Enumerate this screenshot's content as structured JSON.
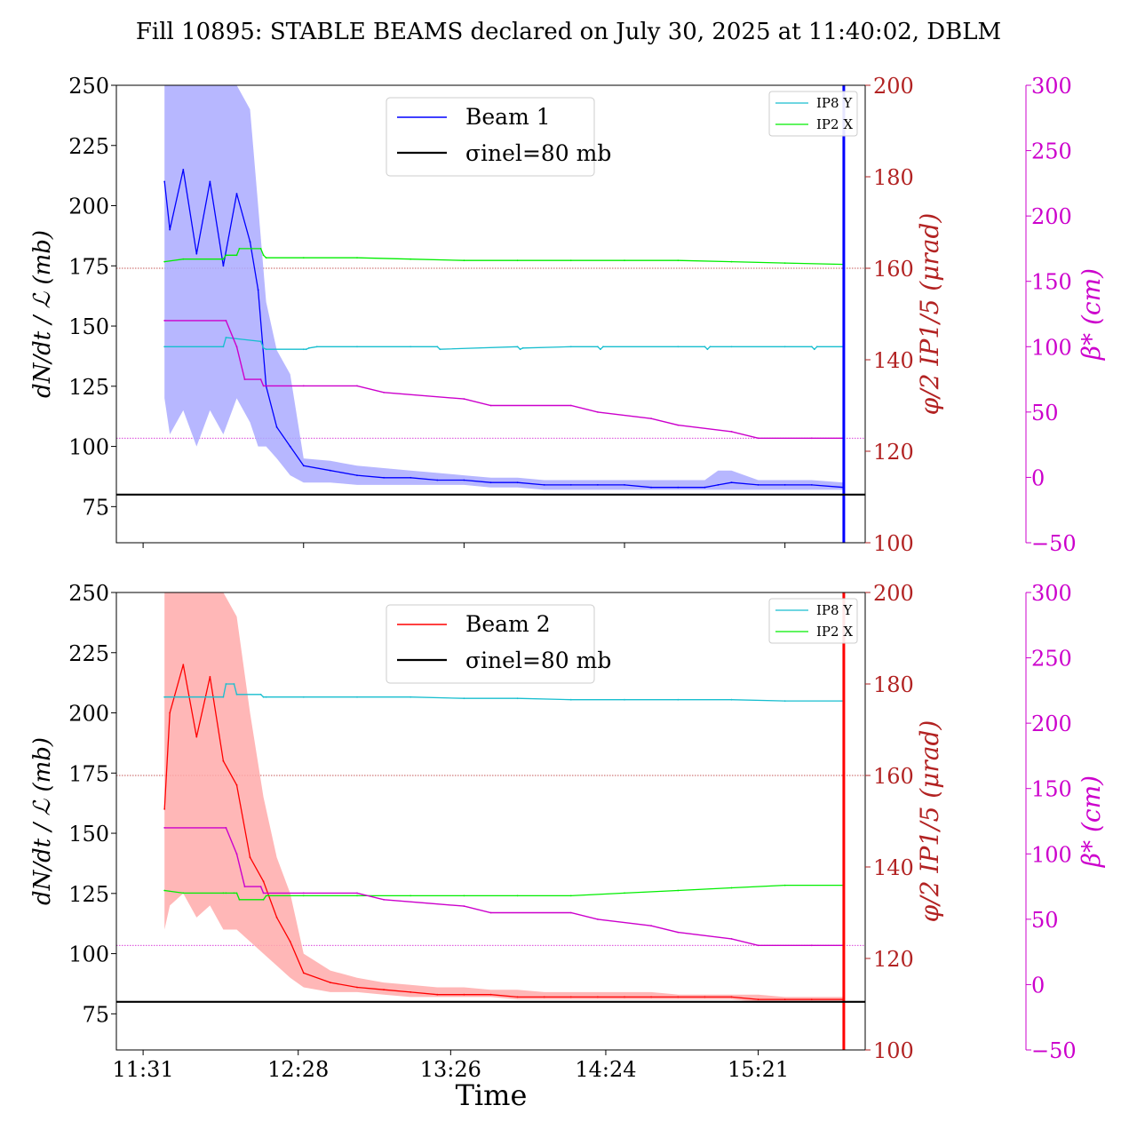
{
  "title": "Fill 10895: STABLE BEAMS declared on July 30, 2025 at 11:40:02, DBLM",
  "colors": {
    "beam1": "#0000ff",
    "beam1_band": "#aaaaff",
    "beam2": "#ff0000",
    "beam2_band": "#ffaaaa",
    "ip8y": "#17becf",
    "ip2x": "#00ee00",
    "beta": "#cc00cc",
    "phi_axis": "#b22222",
    "sigma": "#000000"
  },
  "chart_data": [
    {
      "type": "line",
      "xlabel": "",
      "ylabel": "dN/dt / ℒ (mb)",
      "y2label": "φ/2 IP1/5 (μrad)",
      "y3label": "β* (cm)",
      "ylim": [
        60,
        250
      ],
      "y2lim": [
        100,
        200
      ],
      "y3lim": [
        -50,
        300
      ],
      "xlim_min": [
        -10,
        270
      ],
      "xticks_min": [
        0,
        60,
        120,
        180,
        240
      ],
      "yticks": [
        75,
        100,
        125,
        150,
        175,
        200,
        225,
        250
      ],
      "y2ticks": [
        100,
        120,
        140,
        160,
        180,
        200
      ],
      "y3ticks": [
        -50,
        0,
        50,
        100,
        150,
        200,
        250,
        300
      ],
      "legend": {
        "position": "upper-center",
        "entries": [
          "Beam 1",
          "σinel=80 mb"
        ]
      },
      "legend2": {
        "position": "upper-right",
        "entries": [
          "IP8 Y",
          "IP2 X"
        ]
      },
      "hlines": [
        {
          "y2": 160,
          "style": "dotted",
          "axis": "phi"
        },
        {
          "y3": 30,
          "style": "dotted",
          "axis": "beta"
        }
      ],
      "sigma_inel_mb": 80,
      "series": [
        {
          "name": "Beam 1",
          "axis": "y",
          "x_min": [
            8,
            10,
            15,
            20,
            25,
            30,
            35,
            40,
            43,
            46,
            50,
            55,
            60,
            70,
            80,
            90,
            100,
            110,
            120,
            130,
            140,
            150,
            160,
            170,
            180,
            190,
            200,
            210,
            215,
            220,
            230,
            240,
            250,
            262
          ],
          "values": [
            210,
            190,
            215,
            180,
            210,
            175,
            205,
            185,
            165,
            125,
            108,
            100,
            92,
            90,
            88,
            87,
            87,
            86,
            86,
            85,
            85,
            84,
            84,
            84,
            84,
            83,
            83,
            83,
            84,
            85,
            84,
            84,
            84,
            83
          ],
          "band_low": [
            120,
            105,
            115,
            100,
            115,
            105,
            120,
            110,
            100,
            100,
            95,
            88,
            85,
            85,
            84,
            84,
            84,
            84,
            84,
            83,
            83,
            82,
            82,
            82,
            82,
            82,
            82,
            82,
            82,
            82,
            82,
            82,
            82,
            82
          ],
          "band_high": [
            250,
            250,
            250,
            250,
            250,
            250,
            250,
            240,
            200,
            160,
            140,
            130,
            95,
            94,
            92,
            91,
            90,
            89,
            88,
            87,
            87,
            86,
            86,
            86,
            86,
            86,
            86,
            86,
            90,
            90,
            86,
            86,
            86,
            85
          ]
        },
        {
          "name": "IP8 Y",
          "axis": "beta",
          "x_min": [
            8,
            30,
            31,
            44,
            45,
            46,
            60,
            61,
            62,
            65,
            80,
            100,
            110,
            111,
            140,
            141,
            142,
            160,
            170,
            171,
            172,
            200,
            210,
            211,
            212,
            220,
            240,
            250,
            251,
            252,
            262
          ],
          "values": [
            100,
            100,
            107,
            104,
            99,
            98,
            98,
            98,
            99,
            100,
            100,
            100,
            100,
            98,
            100,
            98,
            99,
            100,
            100,
            98,
            100,
            100,
            100,
            98,
            100,
            100,
            100,
            100,
            98,
            100,
            100
          ]
        },
        {
          "name": "IP2 X",
          "axis": "beta",
          "x_min": [
            8,
            15,
            30,
            31,
            35,
            36,
            44,
            45,
            46,
            60,
            80,
            100,
            120,
            140,
            160,
            180,
            200,
            220,
            240,
            262
          ],
          "values": [
            165,
            167,
            167,
            170,
            170,
            175,
            175,
            170,
            168,
            168,
            168,
            167,
            166,
            166,
            166,
            166,
            166,
            165,
            164,
            163
          ]
        },
        {
          "name": "β*",
          "axis": "beta",
          "x_min": [
            8,
            31,
            35,
            38,
            44,
            45,
            60,
            80,
            90,
            120,
            130,
            160,
            170,
            190,
            200,
            220,
            230,
            250,
            262
          ],
          "values": [
            120,
            120,
            100,
            75,
            75,
            70,
            70,
            70,
            65,
            60,
            55,
            55,
            50,
            45,
            40,
            35,
            30,
            30,
            30
          ]
        }
      ]
    },
    {
      "type": "line",
      "xlabel": "Time",
      "ylabel": "dN/dt / ℒ (mb)",
      "y2label": "φ/2 IP1/5 (μrad)",
      "y3label": "β* (cm)",
      "ylim": [
        60,
        250
      ],
      "y2lim": [
        100,
        200
      ],
      "y3lim": [
        -50,
        300
      ],
      "xlim_min": [
        -10,
        270
      ],
      "xticks_min": [
        0,
        58,
        115,
        173,
        230
      ],
      "xticklabels": [
        "11:31",
        "12:28",
        "13:26",
        "14:24",
        "15:21"
      ],
      "yticks": [
        75,
        100,
        125,
        150,
        175,
        200,
        225,
        250
      ],
      "y2ticks": [
        100,
        120,
        140,
        160,
        180,
        200
      ],
      "y3ticks": [
        -50,
        0,
        50,
        100,
        150,
        200,
        250,
        300
      ],
      "legend": {
        "position": "upper-center",
        "entries": [
          "Beam 2",
          "σinel=80 mb"
        ]
      },
      "legend2": {
        "position": "upper-right",
        "entries": [
          "IP8 Y",
          "IP2 X"
        ]
      },
      "hlines": [
        {
          "y2": 160,
          "style": "dotted",
          "axis": "phi"
        },
        {
          "y3": 30,
          "style": "dotted",
          "axis": "beta"
        }
      ],
      "sigma_inel_mb": 80,
      "series": [
        {
          "name": "Beam 2",
          "axis": "y",
          "x_min": [
            8,
            10,
            15,
            20,
            25,
            30,
            35,
            40,
            45,
            50,
            55,
            60,
            70,
            80,
            90,
            100,
            110,
            120,
            130,
            140,
            150,
            160,
            170,
            180,
            190,
            200,
            210,
            220,
            230,
            240,
            250,
            262
          ],
          "values": [
            160,
            200,
            220,
            190,
            215,
            180,
            170,
            140,
            130,
            115,
            105,
            92,
            88,
            86,
            85,
            84,
            83,
            83,
            83,
            82,
            82,
            82,
            82,
            82,
            82,
            82,
            82,
            82,
            81,
            81,
            81,
            81
          ],
          "band_low": [
            110,
            120,
            125,
            115,
            120,
            110,
            110,
            105,
            100,
            95,
            90,
            86,
            84,
            84,
            83,
            82,
            82,
            82,
            82,
            81,
            81,
            81,
            81,
            81,
            81,
            81,
            81,
            81,
            80,
            80,
            80,
            80
          ],
          "band_high": [
            250,
            250,
            250,
            250,
            250,
            250,
            240,
            200,
            165,
            140,
            125,
            100,
            93,
            90,
            88,
            87,
            86,
            86,
            85,
            85,
            84,
            84,
            84,
            84,
            84,
            83,
            83,
            83,
            83,
            82,
            82,
            82
          ]
        },
        {
          "name": "IP8 Y",
          "axis": "beta",
          "x_min": [
            8,
            30,
            31,
            34,
            35,
            44,
            45,
            46,
            60,
            80,
            100,
            120,
            140,
            160,
            180,
            200,
            220,
            240,
            262
          ],
          "values": [
            220,
            220,
            230,
            230,
            222,
            222,
            220,
            220,
            220,
            220,
            220,
            219,
            219,
            218,
            218,
            218,
            218,
            217,
            217
          ]
        },
        {
          "name": "IP2 X",
          "axis": "beta",
          "x_min": [
            8,
            15,
            30,
            31,
            34,
            35,
            36,
            45,
            46,
            60,
            80,
            100,
            120,
            140,
            160,
            180,
            200,
            220,
            240,
            262
          ],
          "values": [
            72,
            70,
            70,
            70,
            70,
            70,
            65,
            65,
            68,
            68,
            68,
            68,
            68,
            68,
            68,
            70,
            72,
            74,
            76,
            76
          ]
        },
        {
          "name": "β*",
          "axis": "beta",
          "x_min": [
            8,
            31,
            35,
            38,
            44,
            45,
            60,
            80,
            90,
            120,
            130,
            160,
            170,
            190,
            200,
            220,
            230,
            250,
            262
          ],
          "values": [
            120,
            120,
            100,
            75,
            75,
            70,
            70,
            70,
            65,
            60,
            55,
            55,
            50,
            45,
            40,
            35,
            30,
            30,
            30
          ]
        }
      ]
    }
  ]
}
